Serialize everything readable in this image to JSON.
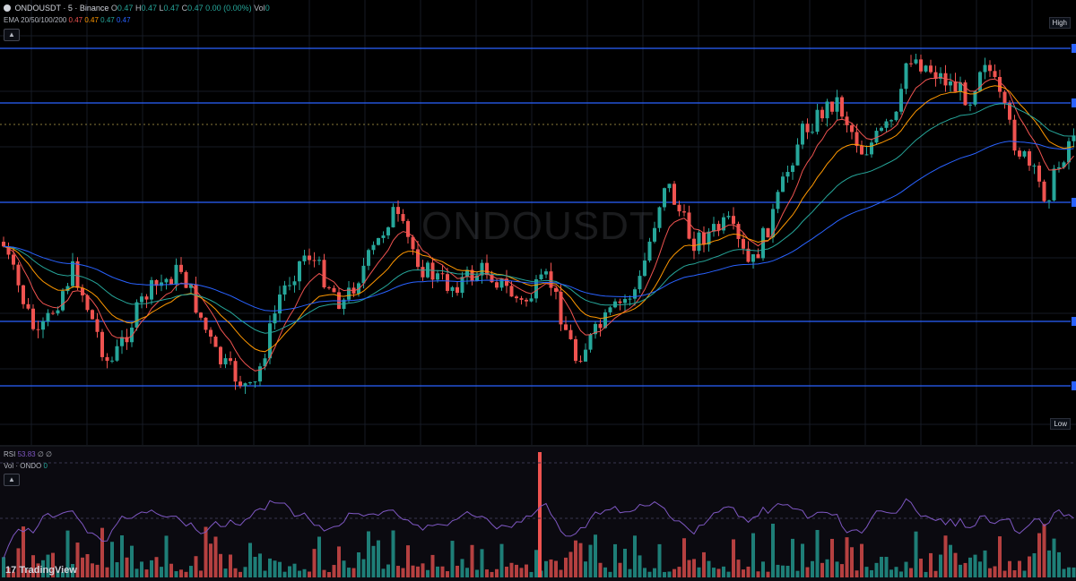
{
  "header": {
    "symbol": "ONDOUSDT · 5 · Binance",
    "o_label": "O",
    "o": "0.47",
    "h_label": "H",
    "h": "0.47",
    "l_label": "L",
    "l": "0.47",
    "c_label": "C",
    "c": "0.47",
    "change": "0.00 (0.00%)",
    "vol_label": "Vol",
    "vol": "0"
  },
  "ema": {
    "label": "EMA 20/50/100/200",
    "v20": "0.47",
    "v50": "0.47",
    "v100": "0.47",
    "v200": "0.47",
    "c20": "#ef5350",
    "c50": "#ff9800",
    "c100": "#26a69a",
    "c200": "#2962ff"
  },
  "watermark": "ONDOUSDT",
  "price_tags": {
    "high": "High",
    "low": "Low"
  },
  "rsi": {
    "label": "RSI",
    "value": "53.83",
    "extra": "∅ ∅",
    "color": "#7e57c2"
  },
  "volume": {
    "label": "Vol · ONDO",
    "value": "0"
  },
  "logo": {
    "mark": "17",
    "text": "TradingView"
  },
  "icons": {
    "collapse": "chevron-up-icon",
    "logo": "tradingview-logo"
  },
  "colors": {
    "up": "#26a69a",
    "down": "#ef5350",
    "level": "#2962ff",
    "background": "#000000"
  },
  "chart_data": {
    "type": "candlestick",
    "symbol": "ONDOUSDT",
    "interval": "5",
    "exchange": "Binance",
    "indicators": [
      "EMA 20",
      "EMA 50",
      "EMA 100",
      "EMA 200",
      "RSI",
      "Volume"
    ],
    "horizontal_levels": 5,
    "grid": true
  }
}
